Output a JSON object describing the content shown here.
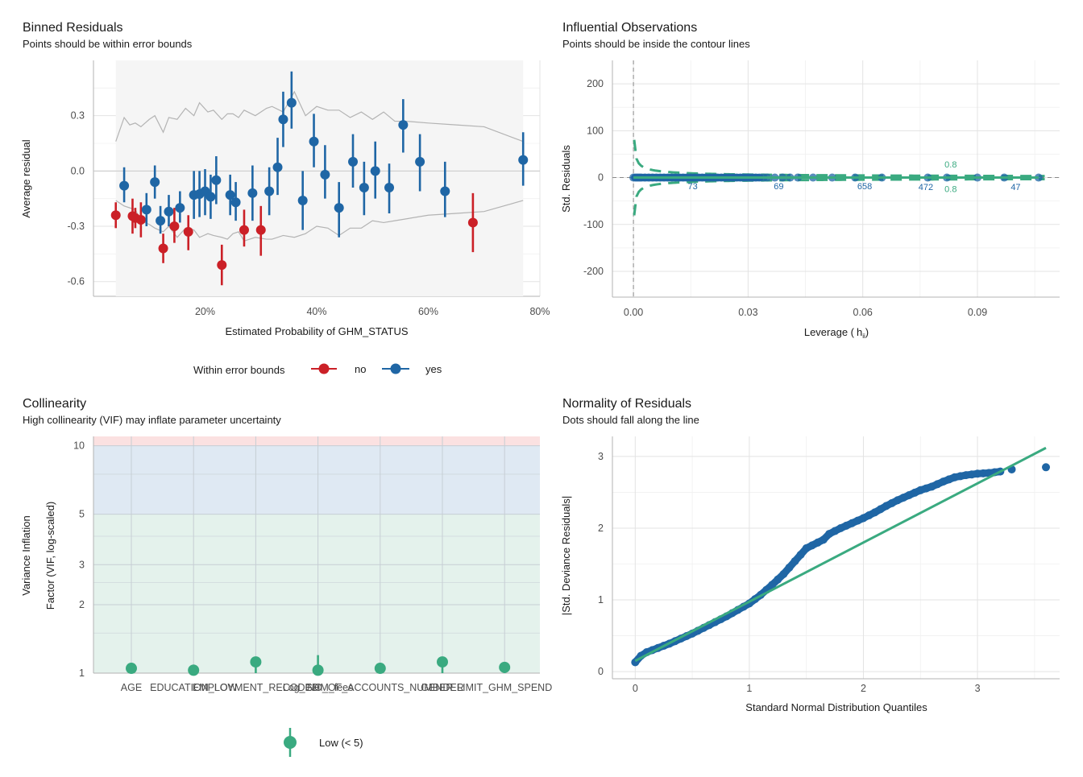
{
  "colors": {
    "no": "#cb2027",
    "yes": "#1f66a5",
    "green": "#3aaa80",
    "ribbon": "#f5f5f5",
    "bound": "#b3b3b3",
    "grid": "#e3e3e3",
    "dash": "#888888"
  },
  "chart_data": [
    {
      "id": "binned",
      "type": "scatter",
      "title": "Binned Residuals",
      "subtitle": "Points should be within error bounds",
      "xlabel": "Estimated Probability of GHM_STATUS",
      "ylabel": "Average residual",
      "xlim": [
        0.0,
        0.8
      ],
      "ylim": [
        -0.68,
        0.6
      ],
      "xticks": [
        0.2,
        0.4,
        0.6,
        0.8
      ],
      "xtick_labels": [
        "20%",
        "40%",
        "60%",
        "80%"
      ],
      "yticks": [
        -0.6,
        -0.3,
        0.0,
        0.3
      ],
      "ytick_labels": [
        "-0.6",
        "-0.3",
        "0.0",
        "0.3"
      ],
      "ribbon_x": [
        0.04,
        0.77
      ],
      "legend": {
        "title": "Within error bounds",
        "items": [
          "no",
          "yes"
        ]
      },
      "bound_x": [
        0.04,
        0.055,
        0.065,
        0.075,
        0.085,
        0.1,
        0.11,
        0.125,
        0.135,
        0.15,
        0.165,
        0.18,
        0.19,
        0.205,
        0.215,
        0.23,
        0.24,
        0.25,
        0.26,
        0.27,
        0.29,
        0.31,
        0.32,
        0.34,
        0.36,
        0.38,
        0.4,
        0.42,
        0.44,
        0.46,
        0.48,
        0.5,
        0.52,
        0.54,
        0.56,
        0.6,
        0.65,
        0.7,
        0.77
      ],
      "bound_upper": [
        0.16,
        0.29,
        0.25,
        0.26,
        0.24,
        0.28,
        0.3,
        0.21,
        0.29,
        0.28,
        0.34,
        0.3,
        0.37,
        0.32,
        0.33,
        0.28,
        0.31,
        0.31,
        0.29,
        0.33,
        0.3,
        0.34,
        0.35,
        0.32,
        0.43,
        0.3,
        0.35,
        0.33,
        0.33,
        0.29,
        0.32,
        0.28,
        0.32,
        0.27,
        0.27,
        0.26,
        0.25,
        0.24,
        0.16
      ],
      "bound_lower": [
        -0.16,
        -0.19,
        -0.2,
        -0.21,
        -0.27,
        -0.29,
        -0.31,
        -0.33,
        -0.3,
        -0.36,
        -0.31,
        -0.32,
        -0.36,
        -0.34,
        -0.35,
        -0.36,
        -0.37,
        -0.34,
        -0.33,
        -0.38,
        -0.36,
        -0.37,
        -0.37,
        -0.35,
        -0.36,
        -0.34,
        -0.3,
        -0.31,
        -0.35,
        -0.31,
        -0.31,
        -0.27,
        -0.28,
        -0.27,
        -0.26,
        -0.24,
        -0.23,
        -0.22,
        -0.16
      ],
      "points": [
        {
          "x": 0.04,
          "y": -0.24,
          "lo": -0.31,
          "hi": -0.17,
          "group": "no"
        },
        {
          "x": 0.055,
          "y": -0.08,
          "lo": -0.17,
          "hi": 0.02,
          "group": "yes"
        },
        {
          "x": 0.07,
          "y": -0.245,
          "lo": -0.34,
          "hi": -0.15,
          "group": "no"
        },
        {
          "x": 0.075,
          "y": -0.255,
          "lo": -0.31,
          "hi": -0.2,
          "group": "no"
        },
        {
          "x": 0.085,
          "y": -0.265,
          "lo": -0.36,
          "hi": -0.17,
          "group": "no"
        },
        {
          "x": 0.095,
          "y": -0.21,
          "lo": -0.3,
          "hi": -0.12,
          "group": "yes"
        },
        {
          "x": 0.11,
          "y": -0.06,
          "lo": -0.15,
          "hi": 0.03,
          "group": "yes"
        },
        {
          "x": 0.12,
          "y": -0.27,
          "lo": -0.34,
          "hi": -0.19,
          "group": "yes"
        },
        {
          "x": 0.125,
          "y": -0.42,
          "lo": -0.5,
          "hi": -0.34,
          "group": "no"
        },
        {
          "x": 0.135,
          "y": -0.22,
          "lo": -0.3,
          "hi": -0.13,
          "group": "yes"
        },
        {
          "x": 0.145,
          "y": -0.3,
          "lo": -0.39,
          "hi": -0.2,
          "group": "no"
        },
        {
          "x": 0.155,
          "y": -0.2,
          "lo": -0.28,
          "hi": -0.11,
          "group": "yes"
        },
        {
          "x": 0.17,
          "y": -0.33,
          "lo": -0.43,
          "hi": -0.24,
          "group": "no"
        },
        {
          "x": 0.18,
          "y": -0.13,
          "lo": -0.26,
          "hi": 0.0,
          "group": "yes"
        },
        {
          "x": 0.19,
          "y": -0.125,
          "lo": -0.25,
          "hi": 0.0,
          "group": "yes"
        },
        {
          "x": 0.2,
          "y": -0.11,
          "lo": -0.24,
          "hi": 0.01,
          "group": "yes"
        },
        {
          "x": 0.21,
          "y": -0.14,
          "lo": -0.26,
          "hi": -0.02,
          "group": "yes"
        },
        {
          "x": 0.22,
          "y": -0.05,
          "lo": -0.18,
          "hi": 0.08,
          "group": "yes"
        },
        {
          "x": 0.23,
          "y": -0.51,
          "lo": -0.62,
          "hi": -0.4,
          "group": "no"
        },
        {
          "x": 0.245,
          "y": -0.13,
          "lo": -0.24,
          "hi": -0.02,
          "group": "yes"
        },
        {
          "x": 0.255,
          "y": -0.17,
          "lo": -0.27,
          "hi": -0.06,
          "group": "yes"
        },
        {
          "x": 0.27,
          "y": -0.32,
          "lo": -0.41,
          "hi": -0.21,
          "group": "no"
        },
        {
          "x": 0.285,
          "y": -0.12,
          "lo": -0.27,
          "hi": 0.03,
          "group": "yes"
        },
        {
          "x": 0.3,
          "y": -0.32,
          "lo": -0.46,
          "hi": -0.19,
          "group": "no"
        },
        {
          "x": 0.315,
          "y": -0.11,
          "lo": -0.24,
          "hi": 0.02,
          "group": "yes"
        },
        {
          "x": 0.33,
          "y": 0.02,
          "lo": -0.13,
          "hi": 0.18,
          "group": "yes"
        },
        {
          "x": 0.34,
          "y": 0.28,
          "lo": 0.13,
          "hi": 0.43,
          "group": "yes"
        },
        {
          "x": 0.355,
          "y": 0.37,
          "lo": 0.23,
          "hi": 0.54,
          "group": "yes"
        },
        {
          "x": 0.375,
          "y": -0.16,
          "lo": -0.32,
          "hi": 0.0,
          "group": "yes"
        },
        {
          "x": 0.395,
          "y": 0.16,
          "lo": 0.02,
          "hi": 0.31,
          "group": "yes"
        },
        {
          "x": 0.415,
          "y": -0.02,
          "lo": -0.15,
          "hi": 0.14,
          "group": "yes"
        },
        {
          "x": 0.44,
          "y": -0.2,
          "lo": -0.36,
          "hi": -0.06,
          "group": "yes"
        },
        {
          "x": 0.465,
          "y": 0.05,
          "lo": -0.09,
          "hi": 0.2,
          "group": "yes"
        },
        {
          "x": 0.485,
          "y": -0.09,
          "lo": -0.24,
          "hi": 0.05,
          "group": "yes"
        },
        {
          "x": 0.505,
          "y": 0.0,
          "lo": -0.15,
          "hi": 0.16,
          "group": "yes"
        },
        {
          "x": 0.53,
          "y": -0.09,
          "lo": -0.23,
          "hi": 0.04,
          "group": "yes"
        },
        {
          "x": 0.555,
          "y": 0.25,
          "lo": 0.1,
          "hi": 0.39,
          "group": "yes"
        },
        {
          "x": 0.585,
          "y": 0.05,
          "lo": -0.11,
          "hi": 0.2,
          "group": "yes"
        },
        {
          "x": 0.63,
          "y": -0.11,
          "lo": -0.25,
          "hi": 0.05,
          "group": "yes"
        },
        {
          "x": 0.68,
          "y": -0.28,
          "lo": -0.44,
          "hi": -0.12,
          "group": "no"
        },
        {
          "x": 0.77,
          "y": 0.06,
          "lo": -0.08,
          "hi": 0.21,
          "group": "yes"
        }
      ]
    },
    {
      "id": "influence",
      "type": "scatter",
      "title": "Influential Observations",
      "subtitle": "Points should be inside the contour lines",
      "xlabel": "Leverage (",
      "xlabel_tail": ")",
      "xlabel_h": "h",
      "xlabel_sub": "ii",
      "ylabel": "Std. Residuals",
      "xlim": [
        -0.0055,
        0.1115
      ],
      "ylim": [
        -255,
        250
      ],
      "xticks": [
        0.0,
        0.03,
        0.06,
        0.09
      ],
      "xtick_labels": [
        "0.00",
        "0.03",
        "0.06",
        "0.09"
      ],
      "yticks": [
        -200,
        -100,
        0,
        100,
        200
      ],
      "ytick_labels": [
        "-200",
        "-100",
        "0",
        "100",
        "200"
      ],
      "contour_label": "0.8",
      "contour_label_positions": [
        {
          "x": 0.083,
          "y": 28
        },
        {
          "x": 0.083,
          "y": -24
        }
      ],
      "leverage_points": [
        0.0,
        0.0005,
        0.001,
        0.0015,
        0.002,
        0.003,
        0.004,
        0.005,
        0.006,
        0.007,
        0.008,
        0.009,
        0.01,
        0.011,
        0.012,
        0.013,
        0.014,
        0.015,
        0.016,
        0.017,
        0.018,
        0.019,
        0.02,
        0.021,
        0.022,
        0.023,
        0.024,
        0.025,
        0.026,
        0.027,
        0.028,
        0.029,
        0.03,
        0.031,
        0.032,
        0.033,
        0.034,
        0.035,
        0.037,
        0.039,
        0.041,
        0.043,
        0.047,
        0.052,
        0.058,
        0.065,
        0.077,
        0.082,
        0.09,
        0.097,
        0.106
      ],
      "labeled_points": [
        {
          "label": "73",
          "x": 0.0155,
          "y": -18
        },
        {
          "label": "69",
          "x": 0.038,
          "y": -18
        },
        {
          "label": "658",
          "x": 0.0605,
          "y": -18
        },
        {
          "label": "472",
          "x": 0.0765,
          "y": -20
        },
        {
          "label": "47",
          "x": 0.1,
          "y": -20
        }
      ]
    },
    {
      "id": "vif",
      "type": "scatter",
      "title": "Collinearity",
      "subtitle": "High collinearity (VIF) may inflate parameter uncertainty",
      "ylabel_line1": "Variance Inflation",
      "ylabel_line2": "Factor (VIF, log-scaled)",
      "yscale": "log",
      "ylim": [
        1,
        11
      ],
      "yticks": [
        1,
        2,
        3,
        5,
        10
      ],
      "ytick_labels": [
        "1",
        "2",
        "3",
        "5",
        "10"
      ],
      "categories": [
        "AGE",
        "EDUCATION_LOW",
        "EMPLOYMENT_RECODED",
        "Log_GHM_fees",
        "NO_OF_ACCOUNTS_NUMBER",
        "GENDER",
        "LIMIT_GHM_SPEND"
      ],
      "values": [
        1.05,
        1.03,
        1.12,
        1.03,
        1.05,
        1.12,
        1.06
      ],
      "lo": [
        1.0,
        1.0,
        1.0,
        1.0,
        1.0,
        1.0,
        1.0
      ],
      "hi": [
        1.11,
        1.09,
        1.14,
        1.2,
        1.11,
        1.14,
        1.12
      ],
      "legend": {
        "items": [
          "Low (< 5)"
        ]
      }
    },
    {
      "id": "qq",
      "type": "scatter",
      "title": "Normality of Residuals",
      "subtitle": "Dots should fall along the line",
      "xlabel": "Standard Normal Distribution Quantiles",
      "ylabel": "|Std. Deviance Residuals|",
      "xlim": [
        -0.2,
        3.72
      ],
      "ylim": [
        -0.1,
        3.28
      ],
      "xticks": [
        0,
        1,
        2,
        3
      ],
      "xtick_labels": [
        "0",
        "1",
        "2",
        "3"
      ],
      "yticks": [
        0,
        1,
        2,
        3
      ],
      "ytick_labels": [
        "0",
        "1",
        "2",
        "3"
      ],
      "reference_line": {
        "x": [
          0.0,
          3.6
        ],
        "y": [
          0.15,
          3.12
        ]
      },
      "curve_x": [
        0.0,
        0.05,
        0.1,
        0.2,
        0.3,
        0.4,
        0.5,
        0.6,
        0.7,
        0.8,
        0.9,
        1.0,
        1.1,
        1.2,
        1.3,
        1.4,
        1.5,
        1.6,
        1.65,
        1.7,
        1.8,
        1.9,
        2.0,
        2.1,
        2.2,
        2.3,
        2.4,
        2.5,
        2.6,
        2.7,
        2.8,
        2.9,
        3.0,
        3.1,
        3.2
      ],
      "curve_y": [
        0.13,
        0.22,
        0.27,
        0.33,
        0.39,
        0.46,
        0.53,
        0.61,
        0.69,
        0.77,
        0.86,
        0.95,
        1.07,
        1.21,
        1.36,
        1.54,
        1.72,
        1.8,
        1.84,
        1.92,
        2.0,
        2.07,
        2.14,
        2.22,
        2.31,
        2.39,
        2.46,
        2.53,
        2.58,
        2.65,
        2.71,
        2.74,
        2.76,
        2.77,
        2.79
      ],
      "extra_points": [
        {
          "x": 3.3,
          "y": 2.82
        },
        {
          "x": 3.6,
          "y": 2.85
        }
      ]
    }
  ]
}
